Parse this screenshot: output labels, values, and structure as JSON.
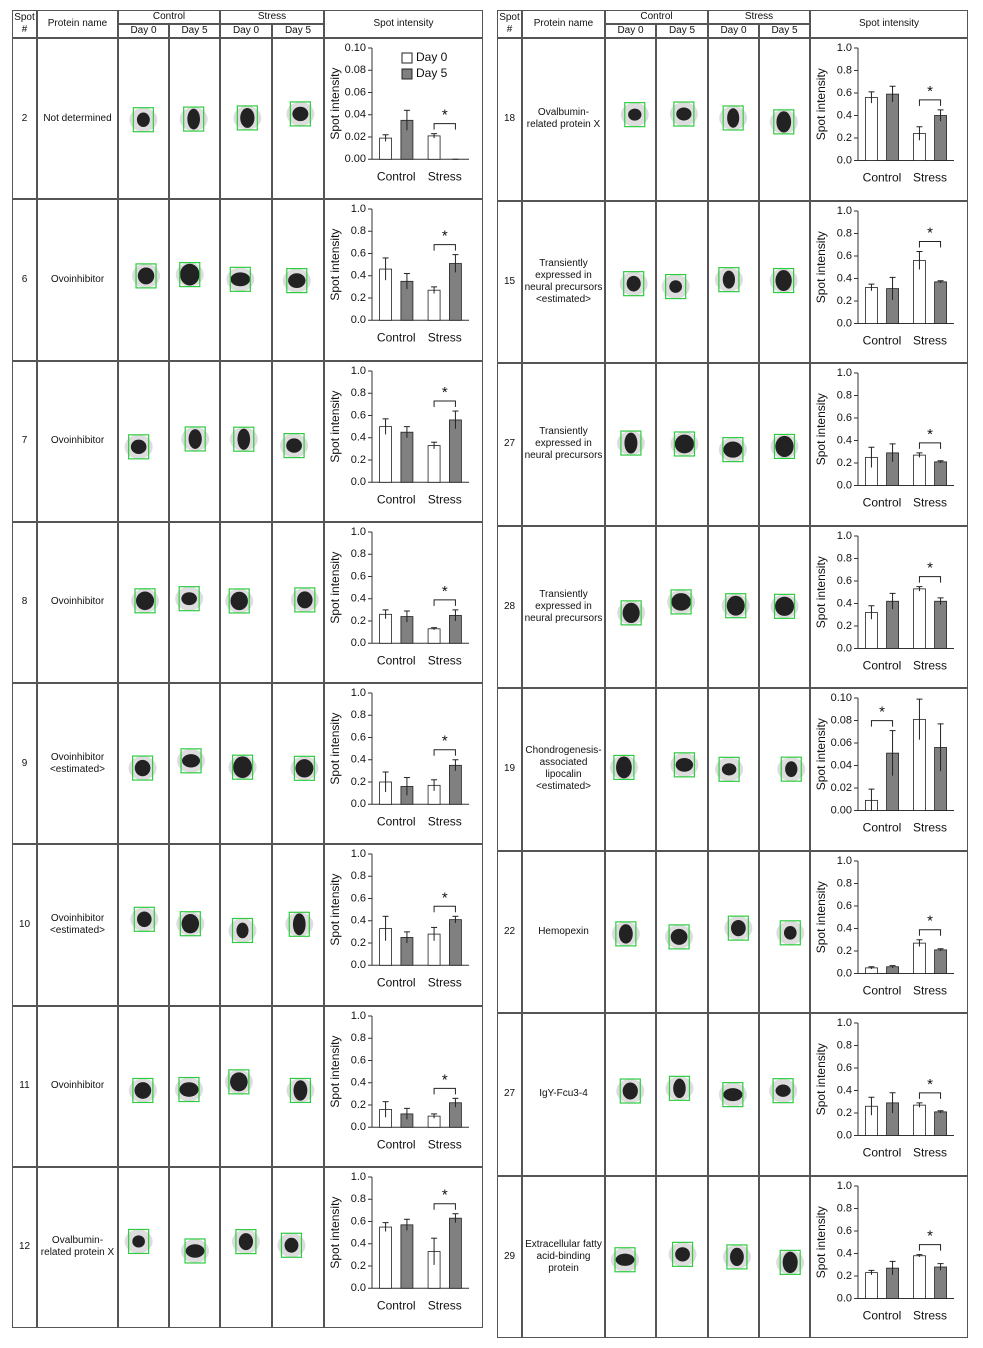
{
  "bar_colors": [
    "#ffffff",
    "#808080"
  ],
  "tables": [
    {
      "headers": {
        "spot": "Spot #",
        "protein": "Protein name",
        "control": "Control",
        "stress": "Stress",
        "days": [
          "Day 0",
          "Day 5",
          "Day 0",
          "Day 5"
        ],
        "intensity": "Spot intensity"
      },
      "rows": [
        {
          "spot": "2",
          "protein": "Not determined",
          "chart": {
            "ylabel": "Spot intensity",
            "categories": [
              "Control",
              "Stress"
            ],
            "ylim": [
              0,
              0.1
            ],
            "yticks": [
              {
                "value": 0,
                "label": "0.00"
              },
              0.02,
              0.04,
              0.06,
              0.08,
              {
                "value": 0.1,
                "label": "0.10"
              }
            ],
            "values": [
              0.019,
              0.035,
              0.021,
              0
            ],
            "errors": [
              0.003,
              0.009,
              0.002,
              0
            ],
            "significance": {
              "label": "*",
              "category": "Stress"
            },
            "series_names": [
              "Day 0",
              "Day 5"
            ]
          }
        },
        {
          "spot": "6",
          "protein": "Ovoinhibitor",
          "chart": {
            "ylabel": "Spot intensity",
            "categories": [
              "Control",
              "Stress"
            ],
            "ylim": [
              0,
              1
            ],
            "yticks": [
              {
                "value": 0,
                "label": "0.0"
              },
              0.2,
              0.4,
              0.6,
              0.8,
              {
                "value": 1,
                "label": "1.0"
              }
            ],
            "values": [
              0.46,
              0.35,
              0.27,
              0.51
            ],
            "errors": [
              0.1,
              0.07,
              0.03,
              0.08
            ],
            "significance": {
              "label": "*",
              "category": "Stress"
            }
          }
        },
        {
          "spot": "7",
          "protein": "Ovoinhibitor",
          "chart": {
            "ylabel": "Spot intensity",
            "categories": [
              "Control",
              "Stress"
            ],
            "ylim": [
              0,
              1
            ],
            "yticks": [
              {
                "value": 0,
                "label": "0.0"
              },
              0.2,
              0.4,
              0.6,
              0.8,
              {
                "value": 1,
                "label": "1.0"
              }
            ],
            "values": [
              0.5,
              0.45,
              0.33,
              0.56
            ],
            "errors": [
              0.07,
              0.05,
              0.03,
              0.08
            ],
            "significance": {
              "label": "*",
              "category": "Stress"
            }
          }
        },
        {
          "spot": "8",
          "protein": "Ovoinhibitor",
          "chart": {
            "ylabel": "Spot intensity",
            "categories": [
              "Control",
              "Stress"
            ],
            "ylim": [
              0,
              1
            ],
            "yticks": [
              {
                "value": 0,
                "label": "0.0"
              },
              0.2,
              0.4,
              0.6,
              0.8,
              {
                "value": 1,
                "label": "1.0"
              }
            ],
            "values": [
              0.26,
              0.24,
              0.13,
              0.25
            ],
            "errors": [
              0.04,
              0.05,
              0.01,
              0.05
            ],
            "significance": {
              "label": "*",
              "category": "Stress"
            }
          }
        },
        {
          "spot": "9",
          "protein": "Ovoinhibitor <estimated>",
          "chart": {
            "ylabel": "Spot intensity",
            "categories": [
              "Control",
              "Stress"
            ],
            "ylim": [
              0,
              1
            ],
            "yticks": [
              {
                "value": 0,
                "label": "0.0"
              },
              0.2,
              0.4,
              0.6,
              0.8,
              {
                "value": 1,
                "label": "1.0"
              }
            ],
            "values": [
              0.2,
              0.16,
              0.17,
              0.35
            ],
            "errors": [
              0.09,
              0.08,
              0.05,
              0.05
            ],
            "significance": {
              "label": "*",
              "category": "Stress"
            }
          }
        },
        {
          "spot": "10",
          "protein": "Ovoinhibitor <estimated>",
          "chart": {
            "ylabel": "Spot intensity",
            "categories": [
              "Control",
              "Stress"
            ],
            "ylim": [
              0,
              1
            ],
            "yticks": [
              {
                "value": 0,
                "label": "0.0"
              },
              0.2,
              0.4,
              0.6,
              0.8,
              {
                "value": 1,
                "label": "1.0"
              }
            ],
            "values": [
              0.33,
              0.25,
              0.28,
              0.41
            ],
            "errors": [
              0.11,
              0.05,
              0.06,
              0.03
            ],
            "significance": {
              "label": "*",
              "category": "Stress"
            }
          }
        },
        {
          "spot": "11",
          "protein": "Ovoinhibitor",
          "chart": {
            "ylabel": "Spot intensity",
            "categories": [
              "Control",
              "Stress"
            ],
            "ylim": [
              0,
              1
            ],
            "yticks": [
              {
                "value": 0,
                "label": "0.0"
              },
              0.2,
              0.4,
              0.6,
              0.8,
              {
                "value": 1,
                "label": "1.0"
              }
            ],
            "values": [
              0.16,
              0.12,
              0.1,
              0.22
            ],
            "errors": [
              0.07,
              0.05,
              0.02,
              0.04
            ],
            "significance": {
              "label": "*",
              "category": "Stress"
            }
          }
        },
        {
          "spot": "12",
          "protein": "Ovalbumin-related protein X",
          "chart": {
            "ylabel": "Spot intensity",
            "categories": [
              "Control",
              "Stress"
            ],
            "ylim": [
              0,
              1
            ],
            "yticks": [
              {
                "value": 0,
                "label": "0.0"
              },
              0.2,
              0.4,
              0.6,
              0.8,
              {
                "value": 1,
                "label": "1.0"
              }
            ],
            "values": [
              0.55,
              0.57,
              0.33,
              0.63
            ],
            "errors": [
              0.04,
              0.05,
              0.12,
              0.04
            ],
            "significance": {
              "label": "*",
              "category": "Stress"
            }
          }
        }
      ]
    },
    {
      "headers": {
        "spot": "Spot #",
        "protein": "Protein name",
        "control": "Control",
        "stress": "Stress",
        "days": [
          "Day 0",
          "Day 5",
          "Day 0",
          "Day 5"
        ],
        "intensity": "Spot intensity"
      },
      "rows": [
        {
          "spot": "18",
          "protein": "Ovalbumin-related protein X",
          "chart": {
            "ylabel": "Spot intensity",
            "categories": [
              "Control",
              "Stress"
            ],
            "ylim": [
              0,
              1
            ],
            "yticks": [
              {
                "value": 0,
                "label": "0.0"
              },
              0.2,
              0.4,
              0.6,
              0.8,
              {
                "value": 1,
                "label": "1.0"
              }
            ],
            "values": [
              0.56,
              0.59,
              0.24,
              0.4
            ],
            "errors": [
              0.05,
              0.07,
              0.06,
              0.05
            ],
            "significance": {
              "label": "*",
              "category": "Stress"
            }
          }
        },
        {
          "spot": "15",
          "protein": "Transiently expressed in neural precursors <estimated>",
          "chart": {
            "ylabel": "Spot intensity",
            "categories": [
              "Control",
              "Stress"
            ],
            "ylim": [
              0,
              1
            ],
            "yticks": [
              {
                "value": 0,
                "label": "0.0"
              },
              0.2,
              0.4,
              0.6,
              0.8,
              {
                "value": 1,
                "label": "1.0"
              }
            ],
            "values": [
              0.32,
              0.31,
              0.56,
              0.37
            ],
            "errors": [
              0.03,
              0.1,
              0.08,
              0.01
            ],
            "significance": {
              "label": "*",
              "category": "Stress"
            }
          }
        },
        {
          "spot": "27",
          "protein": "Transiently expressed in neural precursors",
          "chart": {
            "ylabel": "Spot intensity",
            "categories": [
              "Control",
              "Stress"
            ],
            "ylim": [
              0,
              1
            ],
            "yticks": [
              {
                "value": 0,
                "label": "0.0"
              },
              0.2,
              0.4,
              0.6,
              0.8,
              {
                "value": 1,
                "label": "1.0"
              }
            ],
            "values": [
              0.25,
              0.29,
              0.27,
              0.21
            ],
            "errors": [
              0.09,
              0.08,
              0.02,
              0.01
            ],
            "significance": {
              "label": "*",
              "category": "Stress"
            }
          }
        },
        {
          "spot": "28",
          "protein": "Transiently expressed in neural precursors",
          "chart": {
            "ylabel": "Spot intensity",
            "categories": [
              "Control",
              "Stress"
            ],
            "ylim": [
              0,
              1
            ],
            "yticks": [
              {
                "value": 0,
                "label": "0.0"
              },
              0.2,
              0.4,
              0.6,
              0.8,
              {
                "value": 1,
                "label": "1.0"
              }
            ],
            "values": [
              0.32,
              0.42,
              0.53,
              0.42
            ],
            "errors": [
              0.06,
              0.07,
              0.02,
              0.03
            ],
            "significance": {
              "label": "*",
              "category": "Stress"
            }
          }
        },
        {
          "spot": "19",
          "protein": "Chondrogenesis-associated lipocalin <estimated>",
          "chart": {
            "ylabel": "Spot intensity",
            "categories": [
              "Control",
              "Stress"
            ],
            "ylim": [
              0,
              0.1
            ],
            "yticks": [
              {
                "value": 0,
                "label": "0.00"
              },
              0.02,
              0.04,
              0.06,
              0.08,
              {
                "value": 0.1,
                "label": "0.10"
              }
            ],
            "values": [
              0.009,
              0.051,
              0.081,
              0.056
            ],
            "errors": [
              0.01,
              0.02,
              0.018,
              0.021
            ],
            "significance": {
              "label": "*",
              "category": "Control"
            }
          }
        },
        {
          "spot": "22",
          "protein": "Hemopexin",
          "chart": {
            "ylabel": "Spot intensity",
            "categories": [
              "Control",
              "Stress"
            ],
            "ylim": [
              0,
              1
            ],
            "yticks": [
              {
                "value": 0,
                "label": "0.0"
              },
              0.2,
              0.4,
              0.6,
              0.8,
              {
                "value": 1,
                "label": "1.0"
              }
            ],
            "values": [
              0.05,
              0.06,
              0.27,
              0.21
            ],
            "errors": [
              0.01,
              0.01,
              0.03,
              0.01
            ],
            "significance": {
              "label": "*",
              "category": "Stress"
            }
          }
        },
        {
          "spot": "27",
          "protein": "IgY-Fcu3-4",
          "chart": {
            "ylabel": "Spot intensity",
            "categories": [
              "Control",
              "Stress"
            ],
            "ylim": [
              0,
              1
            ],
            "yticks": [
              {
                "value": 0,
                "label": "0.0"
              },
              0.2,
              0.4,
              0.6,
              0.8,
              {
                "value": 1,
                "label": "1.0"
              }
            ],
            "values": [
              0.26,
              0.29,
              0.27,
              0.21
            ],
            "errors": [
              0.08,
              0.09,
              0.02,
              0.01
            ],
            "significance": {
              "label": "*",
              "category": "Stress"
            }
          }
        },
        {
          "spot": "29",
          "protein": "Extracellular fatty acid-binding protein",
          "chart": {
            "ylabel": "Spot intensity",
            "categories": [
              "Control",
              "Stress"
            ],
            "ylim": [
              0,
              1
            ],
            "yticks": [
              {
                "value": 0,
                "label": "0.0"
              },
              0.2,
              0.4,
              0.6,
              0.8,
              {
                "value": 1,
                "label": "1.0"
              }
            ],
            "values": [
              0.23,
              0.27,
              0.38,
              0.28
            ],
            "errors": [
              0.02,
              0.06,
              0.01,
              0.03
            ],
            "significance": {
              "label": "*",
              "category": "Stress"
            }
          }
        }
      ]
    }
  ]
}
